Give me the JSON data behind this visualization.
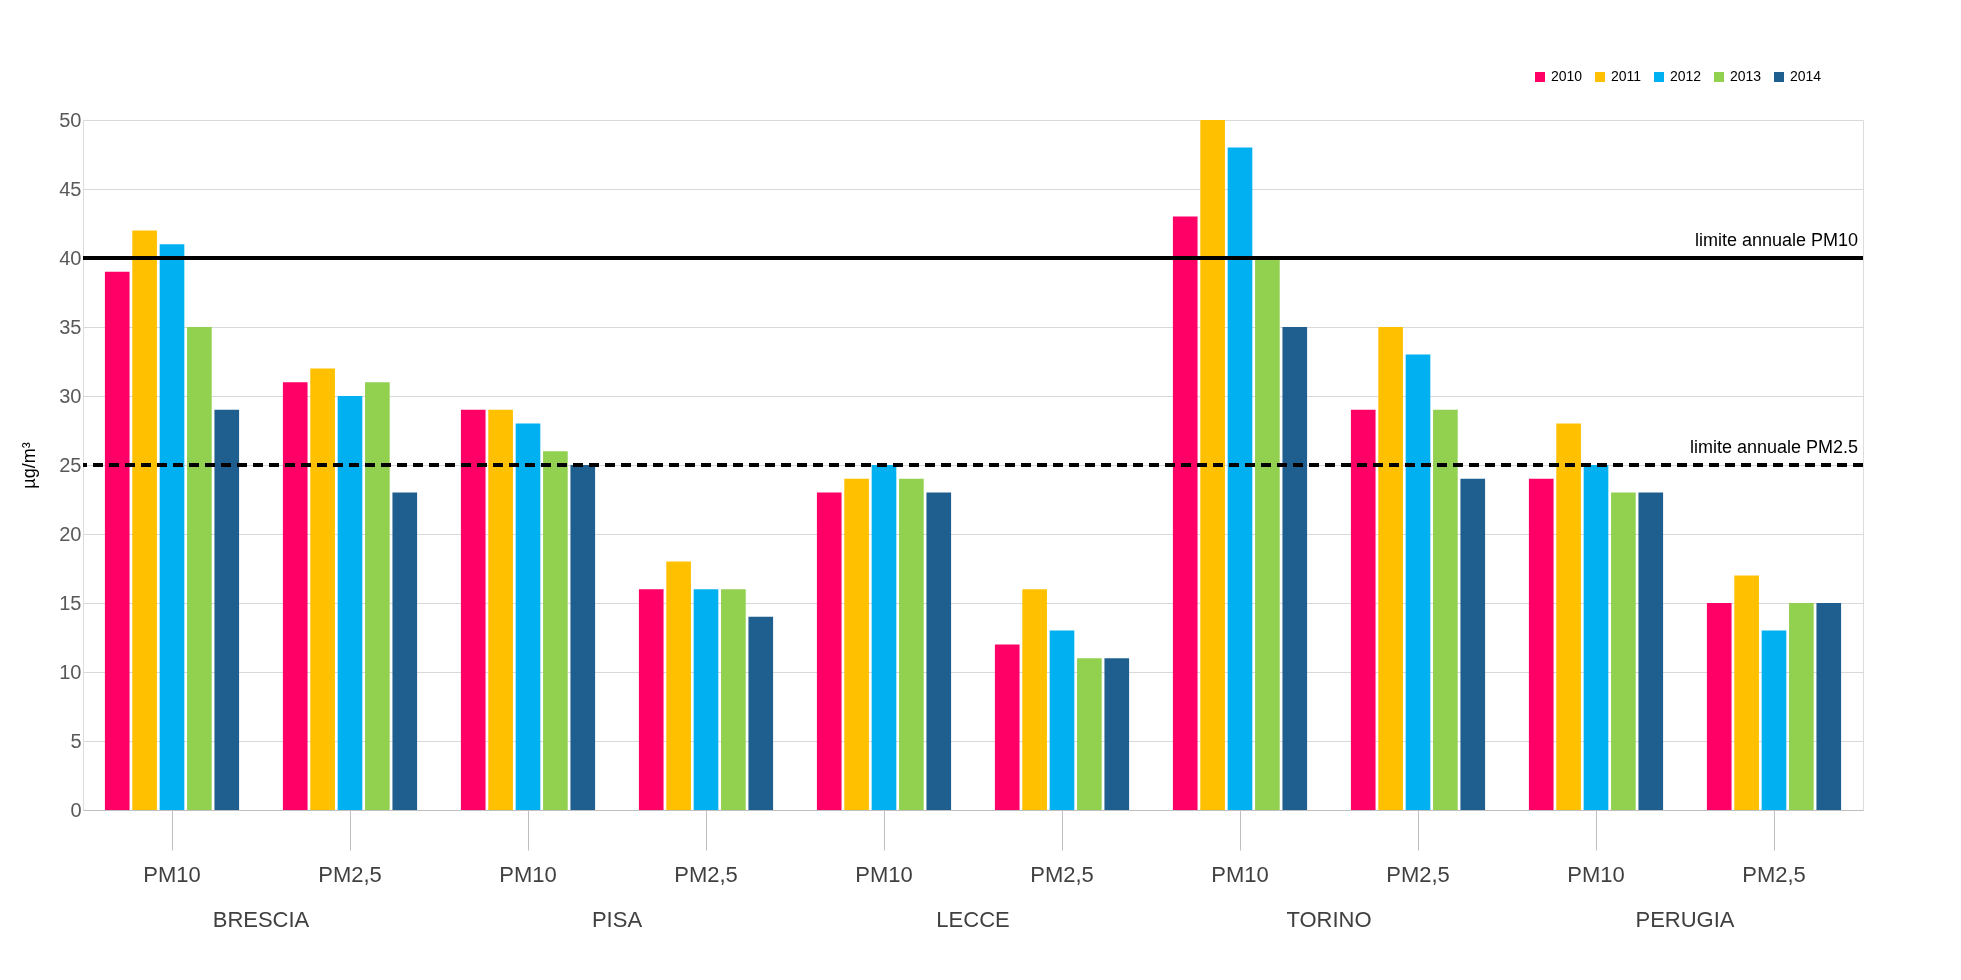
{
  "chart_data": {
    "type": "bar",
    "ylabel": "µg/m³",
    "categories": [
      "PM10",
      "PM2,5",
      "PM10",
      "PM2,5",
      "PM10",
      "PM2,5",
      "PM10",
      "PM2,5",
      "PM10",
      "PM2,5"
    ],
    "series": [
      {
        "name": "2010",
        "color": "#ff0066",
        "values": [
          39,
          31,
          29,
          16,
          23,
          12,
          43,
          29,
          24,
          15
        ]
      },
      {
        "name": "2011",
        "color": "#ffc000",
        "values": [
          42,
          32,
          29,
          18,
          24,
          16,
          50,
          35,
          28,
          17
        ]
      },
      {
        "name": "2012",
        "color": "#00b0f0",
        "values": [
          41,
          30,
          28,
          16,
          25,
          13,
          48,
          33,
          25,
          13
        ]
      },
      {
        "name": "2013",
        "color": "#92d050",
        "values": [
          35,
          31,
          26,
          16,
          24,
          11,
          40,
          29,
          23,
          15
        ]
      },
      {
        "name": "2014",
        "color": "#1f5f8f",
        "values": [
          29,
          23,
          25,
          14,
          23,
          11,
          35,
          24,
          23,
          15
        ]
      }
    ],
    "ylim": [
      0,
      50
    ],
    "yticks": [
      0,
      5,
      10,
      15,
      20,
      25,
      30,
      35,
      40,
      45,
      50
    ],
    "grid": "y",
    "legend": "top right",
    "ref_lines": [
      {
        "axis": "y",
        "value": 40,
        "label": "limite annuale PM10",
        "color": "#000000",
        "line_style": "solid"
      },
      {
        "axis": "y",
        "value": 25,
        "label": "limite annuale PM2.5",
        "color": "#000000",
        "line_style": "dashed"
      }
    ],
    "annotations": [
      "BRESCIA",
      "PISA",
      "LECCE",
      "TORINO",
      "PERUGIA"
    ]
  }
}
